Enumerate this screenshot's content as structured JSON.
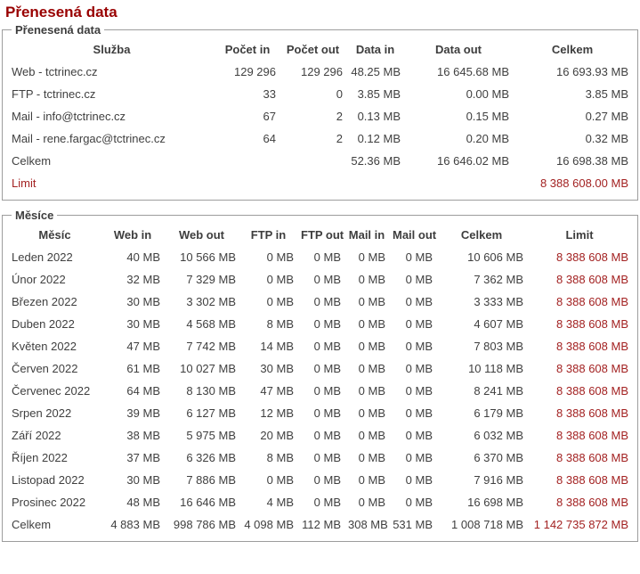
{
  "page": {
    "title": "Přenesená data"
  },
  "colors": {
    "title_red": "#990000",
    "value_red": "#a32222",
    "text_gray": "#404040",
    "border_gray": "#9d9d9d"
  },
  "services": {
    "legend": "Přenesená data",
    "columns": [
      "Služba",
      "Počet in",
      "Počet out",
      "Data in",
      "Data out",
      "Celkem"
    ],
    "rows": [
      {
        "label": "Web - tctrinec.cz",
        "values": [
          "129 296",
          "129 296",
          "48.25 MB",
          "16 645.68 MB",
          "16 693.93 MB"
        ]
      },
      {
        "label": "FTP - tctrinec.cz",
        "values": [
          "33",
          "0",
          "3.85 MB",
          "0.00 MB",
          "3.85 MB"
        ]
      },
      {
        "label": "Mail - info@tctrinec.cz",
        "values": [
          "67",
          "2",
          "0.13 MB",
          "0.15 MB",
          "0.27 MB"
        ]
      },
      {
        "label": "Mail - rene.fargac@tctrinec.cz",
        "values": [
          "64",
          "2",
          "0.12 MB",
          "0.20 MB",
          "0.32 MB"
        ]
      },
      {
        "label": "Celkem",
        "values": [
          "",
          "",
          "52.36 MB",
          "16 646.02 MB",
          "16 698.38 MB"
        ]
      },
      {
        "label": "Limit",
        "values": [
          "",
          "",
          "",
          "",
          "8 388 608.00 MB"
        ],
        "red": true
      }
    ]
  },
  "months": {
    "legend": "Měsíce",
    "columns": [
      "Měsíc",
      "Web in",
      "Web out",
      "FTP in",
      "FTP out",
      "Mail in",
      "Mail out",
      "Celkem",
      "Limit"
    ],
    "red_value_columns": [
      7
    ],
    "rows": [
      {
        "label": "Leden 2022",
        "values": [
          "40 MB",
          "10 566 MB",
          "0 MB",
          "0 MB",
          "0 MB",
          "0 MB",
          "10 606 MB",
          "8 388 608 MB"
        ]
      },
      {
        "label": "Únor 2022",
        "values": [
          "32 MB",
          "7 329 MB",
          "0 MB",
          "0 MB",
          "0 MB",
          "0 MB",
          "7 362 MB",
          "8 388 608 MB"
        ]
      },
      {
        "label": "Březen 2022",
        "values": [
          "30 MB",
          "3 302 MB",
          "0 MB",
          "0 MB",
          "0 MB",
          "0 MB",
          "3 333 MB",
          "8 388 608 MB"
        ]
      },
      {
        "label": "Duben 2022",
        "values": [
          "30 MB",
          "4 568 MB",
          "8 MB",
          "0 MB",
          "0 MB",
          "0 MB",
          "4 607 MB",
          "8 388 608 MB"
        ]
      },
      {
        "label": "Květen 2022",
        "values": [
          "47 MB",
          "7 742 MB",
          "14 MB",
          "0 MB",
          "0 MB",
          "0 MB",
          "7 803 MB",
          "8 388 608 MB"
        ]
      },
      {
        "label": "Červen 2022",
        "values": [
          "61 MB",
          "10 027 MB",
          "30 MB",
          "0 MB",
          "0 MB",
          "0 MB",
          "10 118 MB",
          "8 388 608 MB"
        ]
      },
      {
        "label": "Červenec 2022",
        "values": [
          "64 MB",
          "8 130 MB",
          "47 MB",
          "0 MB",
          "0 MB",
          "0 MB",
          "8 241 MB",
          "8 388 608 MB"
        ]
      },
      {
        "label": "Srpen 2022",
        "values": [
          "39 MB",
          "6 127 MB",
          "12 MB",
          "0 MB",
          "0 MB",
          "0 MB",
          "6 179 MB",
          "8 388 608 MB"
        ]
      },
      {
        "label": "Září 2022",
        "values": [
          "38 MB",
          "5 975 MB",
          "20 MB",
          "0 MB",
          "0 MB",
          "0 MB",
          "6 032 MB",
          "8 388 608 MB"
        ]
      },
      {
        "label": "Říjen 2022",
        "values": [
          "37 MB",
          "6 326 MB",
          "8 MB",
          "0 MB",
          "0 MB",
          "0 MB",
          "6 370 MB",
          "8 388 608 MB"
        ]
      },
      {
        "label": "Listopad 2022",
        "values": [
          "30 MB",
          "7 886 MB",
          "0 MB",
          "0 MB",
          "0 MB",
          "0 MB",
          "7 916 MB",
          "8 388 608 MB"
        ]
      },
      {
        "label": "Prosinec 2022",
        "values": [
          "48 MB",
          "16 646 MB",
          "4 MB",
          "0 MB",
          "0 MB",
          "0 MB",
          "16 698 MB",
          "8 388 608 MB"
        ]
      },
      {
        "label": "Celkem",
        "values": [
          "4 883 MB",
          "998 786 MB",
          "4 098 MB",
          "112 MB",
          "308 MB",
          "531 MB",
          "1 008 718 MB",
          "1 142 735 872 MB"
        ]
      }
    ]
  }
}
